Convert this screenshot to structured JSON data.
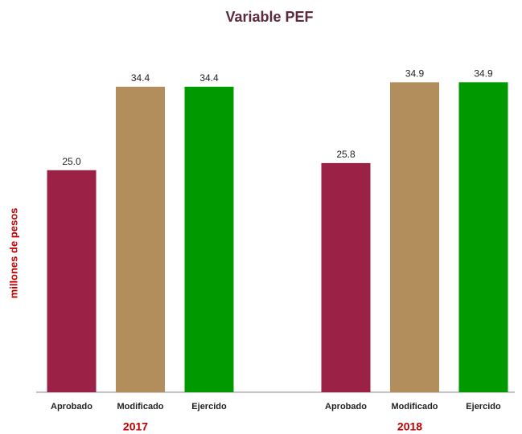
{
  "chart_data": {
    "type": "bar",
    "title": "Variable  PEF",
    "y_label": "millones de pesos",
    "groups": [
      "2017",
      "2018"
    ],
    "series": [
      {
        "name": "Aprobado",
        "color": "#9b2246",
        "values": [
          25.0,
          25.8
        ],
        "value_labels": [
          "25.0",
          "25.8"
        ]
      },
      {
        "name": "Modificado",
        "color": "#b38e5d",
        "values": [
          34.4,
          34.9
        ],
        "value_labels": [
          "34.4",
          "34.9"
        ]
      },
      {
        "name": "Ejercido",
        "color": "#009900",
        "values": [
          34.4,
          34.9
        ],
        "value_labels": [
          "34.4",
          "34.9"
        ]
      }
    ],
    "ylim": [
      0,
      40
    ]
  }
}
